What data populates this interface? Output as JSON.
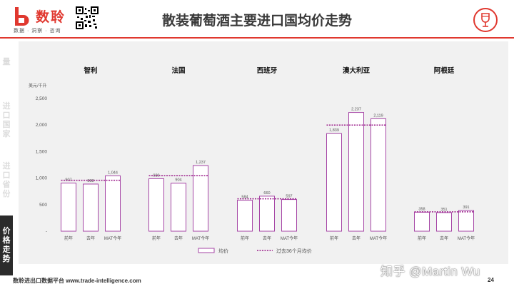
{
  "brand": {
    "name": "数聆",
    "slogan": "数据 · 洞察 · 咨询"
  },
  "page_title": "散装葡萄酒主要进口国均价走势",
  "nav": [
    {
      "label": "量",
      "active": false
    },
    {
      "label": "进口国家",
      "active": false
    },
    {
      "label": "进口省份",
      "active": false
    },
    {
      "label": "价格走势",
      "active": true
    }
  ],
  "footer": {
    "text": "数聆进出口数据平台 www.trade-intelligence.com",
    "page": "24"
  },
  "watermark": "知乎 @Martin Wu",
  "colors": {
    "accent": "#e0382f",
    "bar_stroke": "#a646a6",
    "avg_line": "#9b1d8a",
    "label": "#555555"
  },
  "chart_data": {
    "type": "bar",
    "ylabel": "美元/千升",
    "ylim": [
      0,
      2500
    ],
    "yticks": [
      "-",
      "500",
      "1,000",
      "1,500",
      "2,000",
      "2,500"
    ],
    "ytick_values": [
      0,
      500,
      1000,
      1500,
      2000,
      2500
    ],
    "categories": [
      "前年",
      "去年",
      "MAT今年"
    ],
    "legend": {
      "bar": "均价",
      "line": "过去36个月均价"
    },
    "groups": [
      {
        "name": "智利",
        "values": [
          907,
          888,
          1044
        ],
        "labels": [
          "907",
          "888",
          "1,044"
        ],
        "avg": 960
      },
      {
        "name": "法国",
        "values": [
          989,
          904,
          1237
        ],
        "labels": [
          "989",
          "904",
          "1,237"
        ],
        "avg": 1045
      },
      {
        "name": "西班牙",
        "values": [
          584,
          660,
          597
        ],
        "labels": [
          "584",
          "660",
          "597"
        ],
        "avg": 610
      },
      {
        "name": "澳大利亚",
        "values": [
          1839,
          2237,
          2119
        ],
        "labels": [
          "1,839",
          "2,237",
          "2,119"
        ],
        "avg": 2000
      },
      {
        "name": "阿根廷",
        "values": [
          358,
          351,
          391
        ],
        "labels": [
          "358",
          "351",
          "391"
        ],
        "avg": 365
      }
    ]
  }
}
